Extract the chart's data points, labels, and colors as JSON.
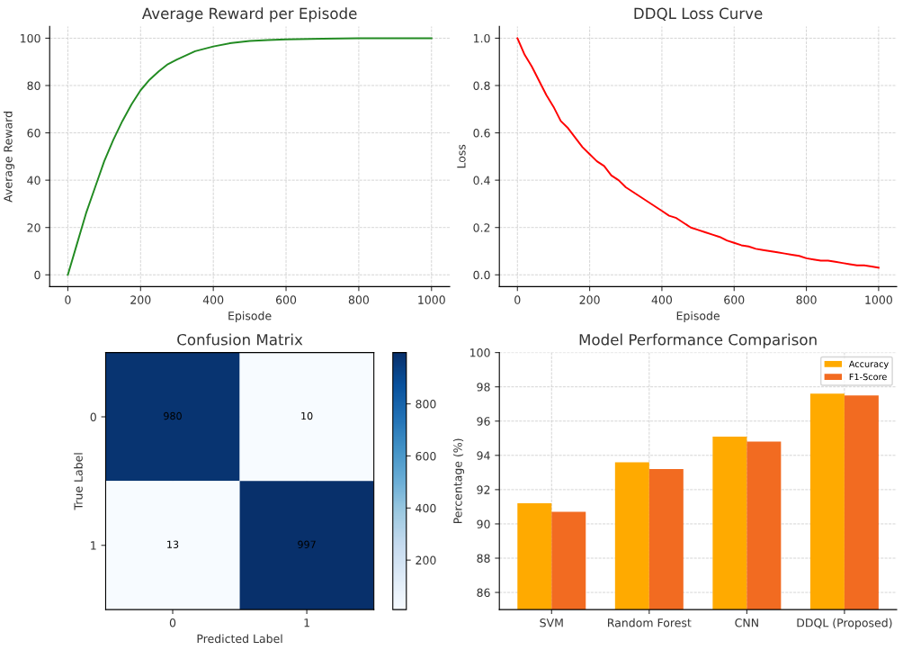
{
  "chart_data": [
    {
      "type": "line",
      "title": "Average Reward per Episode",
      "xlabel": "Episode",
      "ylabel": "Average Reward",
      "series": [
        {
          "color": "#228b22",
          "x": [
            0,
            25,
            50,
            75,
            100,
            125,
            150,
            175,
            200,
            225,
            250,
            275,
            300,
            350,
            400,
            450,
            500,
            550,
            600,
            700,
            800,
            900,
            1000
          ],
          "values": [
            0,
            13,
            26,
            37,
            48,
            57,
            65,
            72,
            78,
            82.5,
            86,
            89,
            91,
            94.5,
            96.5,
            98,
            98.8,
            99.2,
            99.5,
            99.8,
            100,
            100,
            100
          ]
        }
      ],
      "xlim": [
        -50,
        1050
      ],
      "ylim": [
        -5,
        105
      ],
      "xticks": [
        0,
        200,
        400,
        600,
        800,
        1000
      ],
      "yticks": [
        0,
        20,
        40,
        60,
        80,
        100
      ],
      "grid": true
    },
    {
      "type": "line",
      "title": "DDQL Loss Curve",
      "xlabel": "Episode",
      "ylabel": "Loss",
      "series": [
        {
          "color": "#ff0000",
          "x": [
            0,
            20,
            40,
            60,
            80,
            100,
            120,
            140,
            160,
            180,
            200,
            220,
            240,
            260,
            280,
            300,
            320,
            340,
            360,
            380,
            400,
            420,
            440,
            460,
            480,
            500,
            520,
            540,
            560,
            580,
            600,
            620,
            640,
            660,
            680,
            700,
            720,
            740,
            760,
            780,
            800,
            820,
            840,
            860,
            880,
            900,
            920,
            940,
            960,
            980,
            1000
          ],
          "values": [
            1.0,
            0.93,
            0.88,
            0.82,
            0.76,
            0.71,
            0.65,
            0.62,
            0.58,
            0.54,
            0.51,
            0.48,
            0.46,
            0.42,
            0.4,
            0.37,
            0.35,
            0.33,
            0.31,
            0.29,
            0.27,
            0.25,
            0.24,
            0.22,
            0.2,
            0.19,
            0.18,
            0.17,
            0.16,
            0.145,
            0.135,
            0.125,
            0.12,
            0.11,
            0.105,
            0.1,
            0.095,
            0.09,
            0.085,
            0.08,
            0.07,
            0.065,
            0.06,
            0.06,
            0.055,
            0.05,
            0.045,
            0.04,
            0.04,
            0.035,
            0.03
          ]
        }
      ],
      "xlim": [
        -50,
        1050
      ],
      "ylim": [
        -0.05,
        1.05
      ],
      "xticks": [
        0,
        200,
        400,
        600,
        800,
        1000
      ],
      "yticks": [
        {
          "value": 0,
          "label": "0.0"
        },
        {
          "value": 0.2,
          "label": "0.2"
        },
        {
          "value": 0.4,
          "label": "0.4"
        },
        {
          "value": 0.6,
          "label": "0.6"
        },
        {
          "value": 0.8,
          "label": "0.8"
        },
        {
          "value": 1.0,
          "label": "1.0"
        }
      ],
      "grid": true
    },
    {
      "type": "heatmap",
      "title": "Confusion Matrix",
      "xlabel": "Predicted Label",
      "ylabel": "True Label",
      "categories": [
        "0",
        "1"
      ],
      "y_categories": [
        "0",
        "1"
      ],
      "cells": [
        [
          980,
          10
        ],
        [
          13,
          997
        ]
      ],
      "data_labels": true,
      "clim": [
        10,
        997
      ],
      "cticks": [
        200,
        400,
        600,
        800
      ],
      "grid": true
    },
    {
      "type": "bar",
      "title": "Model Performance Comparison",
      "ylabel": "Percentage (%)",
      "categories": [
        "SVM",
        "Random Forest",
        "CNN",
        "DDQL (Proposed)"
      ],
      "series": [
        {
          "name": "Accuracy",
          "color": "#ffaa00",
          "values": [
            91.2,
            93.6,
            95.1,
            97.6
          ]
        },
        {
          "name": "F1-Score",
          "color": "#f26b21",
          "values": [
            90.7,
            93.2,
            94.8,
            97.5
          ]
        }
      ],
      "ylim": [
        85,
        100
      ],
      "yticks": [
        86,
        88,
        90,
        92,
        94,
        96,
        98,
        100
      ],
      "legend": "top right",
      "grid": true
    }
  ]
}
